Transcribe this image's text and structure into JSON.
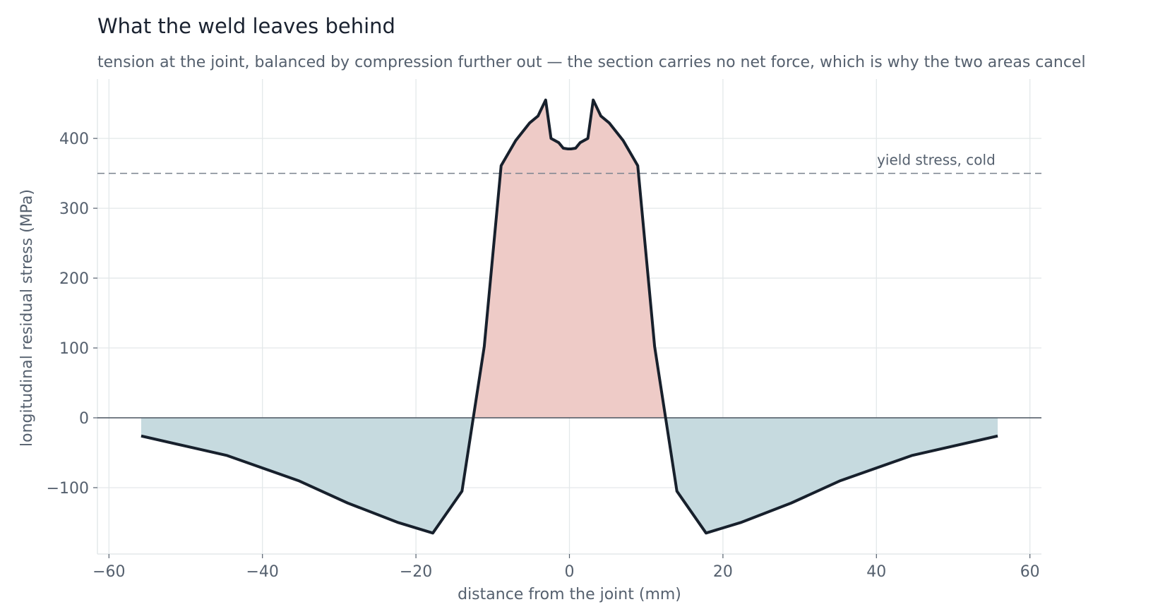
{
  "chart_data": {
    "type": "area",
    "title": "What the weld leaves behind",
    "subtitle": "tension at the joint, balanced by compression further out — the section carries no net force, which is why the two areas cancel",
    "xlabel": "distance from the joint  (mm)",
    "ylabel": "longitudinal residual stress  (MPa)",
    "xlim": [
      -61.5,
      61.5
    ],
    "ylim": [
      -195,
      485
    ],
    "xticks": [
      -60,
      -40,
      -20,
      0,
      20,
      40,
      60
    ],
    "xtick_labels": [
      "−60",
      "−40",
      "−20",
      "0",
      "20",
      "40",
      "60"
    ],
    "yticks": [
      -100,
      0,
      100,
      200,
      300,
      400
    ],
    "ytick_labels": [
      "−100",
      "0",
      "100",
      "200",
      "300",
      "400"
    ],
    "grid": true,
    "reference_line": {
      "y": 350,
      "label": "yield stress, cold",
      "style": "dashed"
    },
    "series": [
      {
        "x": [
          -55.8,
          -44.6,
          -35.3,
          -28.9,
          -22.3,
          -17.8,
          -14.0,
          -11.1,
          -8.9,
          -7.0,
          -5.2,
          -4.1,
          -3.1,
          -2.4,
          -1.4,
          -0.8,
          -0.2,
          0.2,
          0.8,
          1.4,
          2.4,
          3.1,
          4.1,
          5.2,
          7.0,
          8.9,
          11.1,
          14.0,
          17.8,
          22.3,
          28.9,
          35.3,
          44.6,
          55.8
        ],
        "values": [
          -26,
          -54,
          -90,
          -122,
          -150,
          -165,
          -105,
          102,
          361,
          397,
          422,
          432,
          455,
          400,
          394,
          386,
          385,
          385,
          386,
          394,
          400,
          455,
          432,
          422,
          397,
          361,
          102,
          -105,
          -165,
          -150,
          -122,
          -90,
          -54,
          -26
        ]
      }
    ],
    "colors": {
      "line": "#17202c",
      "tension_fill": "#eecbc7",
      "compression_fill": "#c6dadf",
      "grid": "#e3e8ea",
      "reference": "#7a838e",
      "zero_line": "#4a5560",
      "text": "#55606e",
      "title": "#1a2230"
    }
  }
}
